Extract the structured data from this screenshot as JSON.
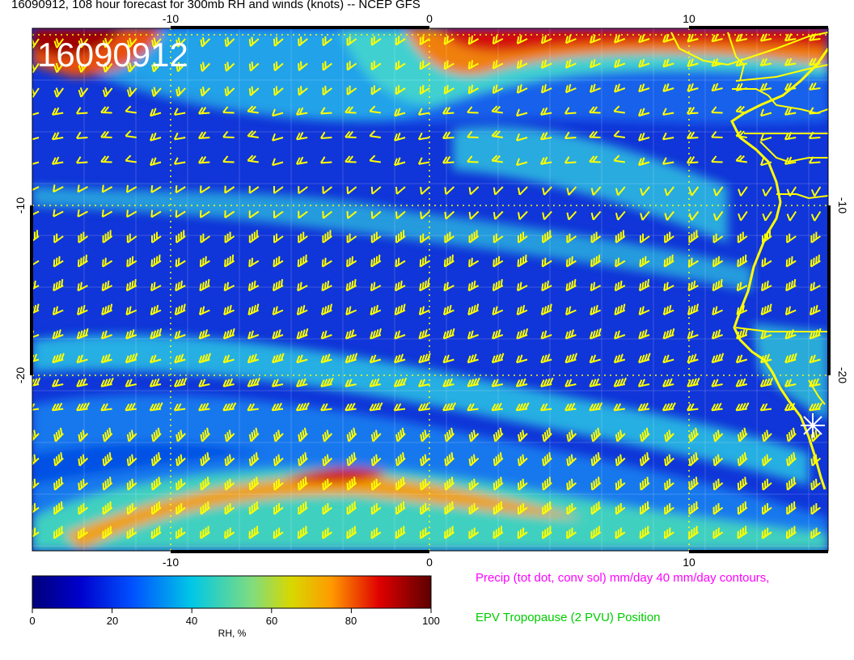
{
  "title": "16090912, 108 hour forecast for 300mb RH and winds (knots) -- NCEP GFS",
  "stamp": "16090912",
  "axes": {
    "x_ticks": [
      "-10",
      "0",
      "10"
    ],
    "y_ticks": [
      "-10",
      "-20"
    ]
  },
  "colorbar": {
    "ticks": [
      "0",
      "20",
      "40",
      "60",
      "80",
      "100"
    ],
    "label": "RH, %"
  },
  "legend": {
    "precip": "Precip (tot dot, conv sol) mm/day 40 mm/day contours,",
    "epv": "EPV Tropopause (2 PVU) Position"
  },
  "colors": {
    "barb": "#ffff00",
    "coast": "#ffff00",
    "precip_text": "#ff00ff",
    "epv_text": "#00cc00"
  },
  "marker": "star-marker"
}
